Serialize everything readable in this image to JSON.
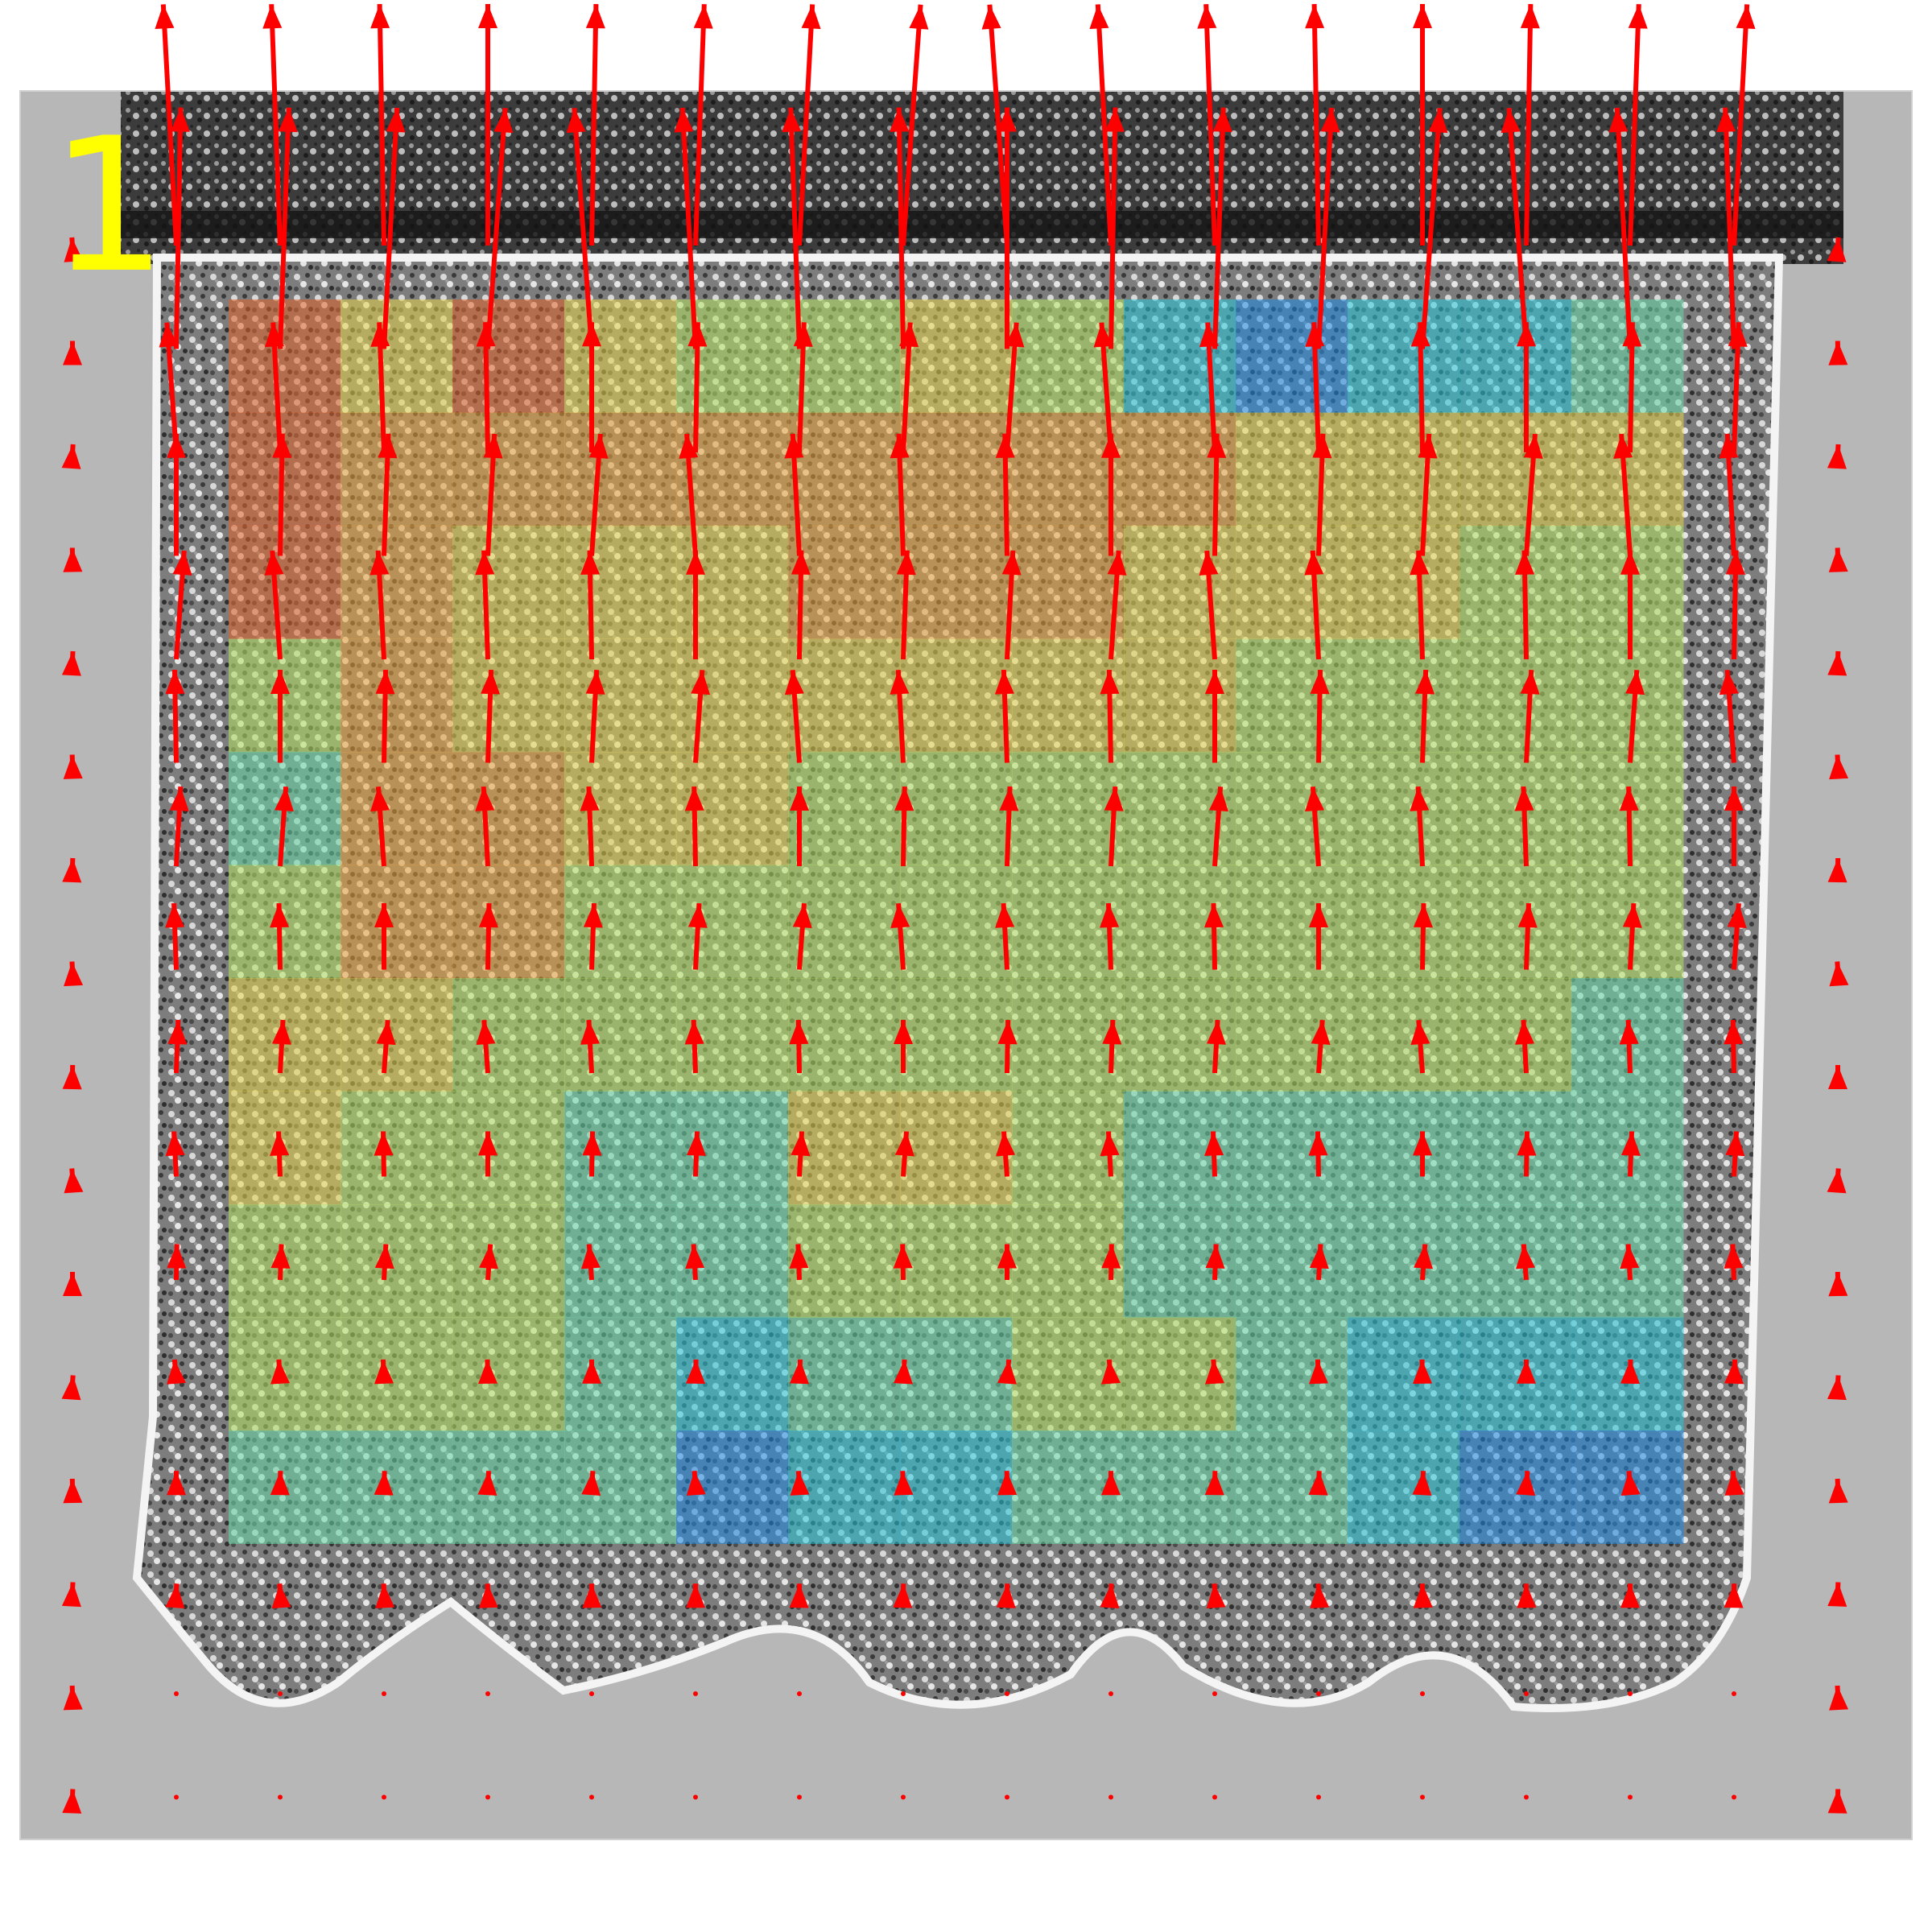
{
  "frame_label": "1",
  "overlay": {
    "type": "heatmap",
    "rows": 11,
    "cols": 13,
    "opacity": 0.55,
    "colormap": [
      "#1e88e5",
      "#26c6da",
      "#66d9a6",
      "#b2e060",
      "#e6d44a",
      "#e9a33a",
      "#e0622c"
    ],
    "values": [
      [
        6,
        4,
        6,
        4,
        3,
        3,
        4,
        3,
        1,
        0,
        1,
        1,
        2
      ],
      [
        6,
        5,
        5,
        5,
        5,
        5,
        5,
        5,
        5,
        4,
        4,
        4,
        4
      ],
      [
        6,
        5,
        4,
        4,
        4,
        5,
        5,
        5,
        4,
        4,
        4,
        3,
        3
      ],
      [
        3,
        5,
        4,
        4,
        4,
        4,
        4,
        4,
        4,
        3,
        3,
        3,
        3
      ],
      [
        2,
        5,
        5,
        4,
        4,
        3,
        3,
        3,
        3,
        3,
        3,
        3,
        3
      ],
      [
        3,
        5,
        5,
        3,
        3,
        3,
        3,
        3,
        3,
        3,
        3,
        3,
        3
      ],
      [
        4,
        4,
        3,
        3,
        3,
        3,
        3,
        3,
        3,
        3,
        3,
        3,
        2
      ],
      [
        4,
        3,
        3,
        2,
        2,
        4,
        4,
        3,
        2,
        2,
        2,
        2,
        2
      ],
      [
        3,
        3,
        3,
        2,
        2,
        3,
        3,
        3,
        2,
        2,
        2,
        2,
        2
      ],
      [
        3,
        3,
        3,
        2,
        1,
        2,
        2,
        3,
        3,
        2,
        1,
        1,
        1
      ],
      [
        2,
        2,
        2,
        2,
        0,
        1,
        1,
        2,
        2,
        2,
        1,
        0,
        0
      ]
    ]
  },
  "vector_field": {
    "color": "#ff0000",
    "cols": 18,
    "rows": 16,
    "row_magnitudes": [
      1.0,
      1.0,
      0.98,
      0.92,
      0.82,
      0.7,
      0.6,
      0.5,
      0.4,
      0.34,
      0.27,
      0.18,
      0.12,
      0.05,
      0.02,
      0.0
    ]
  }
}
